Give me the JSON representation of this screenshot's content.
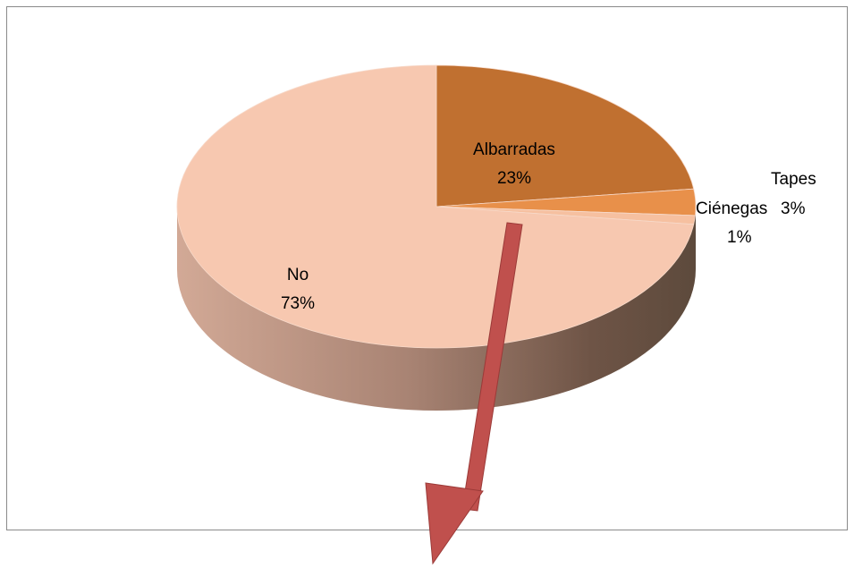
{
  "chart_data": {
    "type": "pie",
    "style": "3d",
    "title": "",
    "slices": [
      {
        "label": "Albarradas",
        "value": 23,
        "display": "23%",
        "color": "#c07030"
      },
      {
        "label": "Ciénegas",
        "value": 3,
        "display": "3%",
        "color": "#e8904a"
      },
      {
        "label": "Tapes",
        "value": 1,
        "display": "1%",
        "color": "#f6c0a0"
      },
      {
        "label": "No",
        "value": 73,
        "display": "73%",
        "color": "#f7c8b0"
      }
    ],
    "annotation": {
      "type": "arrow",
      "color": "#c0504d"
    }
  }
}
